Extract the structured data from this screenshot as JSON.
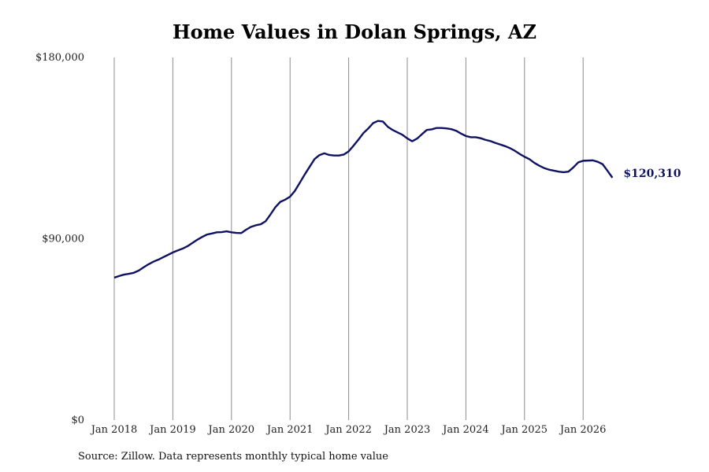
{
  "chart_data": {
    "type": "line",
    "title": "Home Values in Dolan Springs, AZ",
    "xlabel": "",
    "ylabel": "",
    "ylim": [
      0,
      180000
    ],
    "y_ticks": [
      {
        "value": 0,
        "label": "$0"
      },
      {
        "value": 90000,
        "label": "$90,000"
      },
      {
        "value": 180000,
        "label": "$180,000"
      }
    ],
    "x_ticks": [
      "Jan 2018",
      "Jan 2019",
      "Jan 2020",
      "Jan 2021",
      "Jan 2022",
      "Jan 2023",
      "Jan 2024",
      "Jan 2025",
      "Jan 2026"
    ],
    "grid": "vertical",
    "line_color": "#0f1262",
    "series": [
      {
        "x": [
          "2018-01",
          "2018-02",
          "2018-03",
          "2018-04",
          "2018-05",
          "2018-06",
          "2018-07",
          "2018-08",
          "2018-09",
          "2018-10",
          "2018-11",
          "2018-12",
          "2019-01",
          "2019-02",
          "2019-03",
          "2019-04",
          "2019-05",
          "2019-06",
          "2019-07",
          "2019-08",
          "2019-09",
          "2019-10",
          "2019-11",
          "2019-12",
          "2020-01",
          "2020-02",
          "2020-03",
          "2020-04",
          "2020-05",
          "2020-06",
          "2020-07",
          "2020-08",
          "2020-09",
          "2020-10",
          "2020-11",
          "2020-12",
          "2021-01",
          "2021-02",
          "2021-03",
          "2021-04",
          "2021-05",
          "2021-06",
          "2021-07",
          "2021-08",
          "2021-09",
          "2021-10",
          "2021-11",
          "2021-12",
          "2022-01",
          "2022-02",
          "2022-03",
          "2022-04",
          "2022-05",
          "2022-06",
          "2022-07",
          "2022-08",
          "2022-09",
          "2022-10",
          "2022-11",
          "2022-12",
          "2023-01",
          "2023-02",
          "2023-03",
          "2023-04",
          "2023-05",
          "2023-06",
          "2023-07",
          "2023-08",
          "2023-09",
          "2023-10",
          "2023-11",
          "2023-12",
          "2024-01",
          "2024-02",
          "2024-03",
          "2024-04",
          "2024-05",
          "2024-06",
          "2024-07",
          "2024-08",
          "2024-09",
          "2024-10",
          "2024-11",
          "2024-12",
          "2025-01",
          "2025-02",
          "2025-03",
          "2025-04",
          "2025-05",
          "2025-06",
          "2025-07",
          "2025-08",
          "2025-09",
          "2025-10",
          "2025-11",
          "2025-12",
          "2026-01",
          "2026-02",
          "2026-03",
          "2026-04",
          "2026-05",
          "2026-06",
          "2026-07"
        ],
        "values": [
          70700,
          71500,
          72200,
          72600,
          73100,
          74200,
          75800,
          77300,
          78600,
          79600,
          80800,
          82000,
          83200,
          84200,
          85100,
          86300,
          87900,
          89500,
          90900,
          92100,
          92600,
          93200,
          93300,
          93700,
          93200,
          92900,
          92800,
          94500,
          95900,
          96700,
          97200,
          98700,
          102100,
          105700,
          108300,
          109400,
          110900,
          113800,
          117800,
          121900,
          125700,
          129500,
          131500,
          132400,
          131600,
          131300,
          131300,
          131800,
          133400,
          136200,
          139200,
          142400,
          144700,
          147400,
          148500,
          148200,
          145600,
          144000,
          142800,
          141600,
          139800,
          138400,
          139700,
          141900,
          144000,
          144300,
          145000,
          145000,
          144800,
          144400,
          143600,
          142200,
          141000,
          140400,
          140400,
          139900,
          139100,
          138500,
          137600,
          136800,
          136000,
          135000,
          133700,
          132100,
          130700,
          129500,
          127700,
          126300,
          125100,
          124300,
          123800,
          123300,
          123000,
          123300,
          125400,
          127900,
          128700,
          128800,
          128900,
          128200,
          127000,
          123700,
          120310
        ]
      }
    ],
    "end_label": "$120,310",
    "source": "Source: Zillow. Data represents monthly typical home value"
  }
}
